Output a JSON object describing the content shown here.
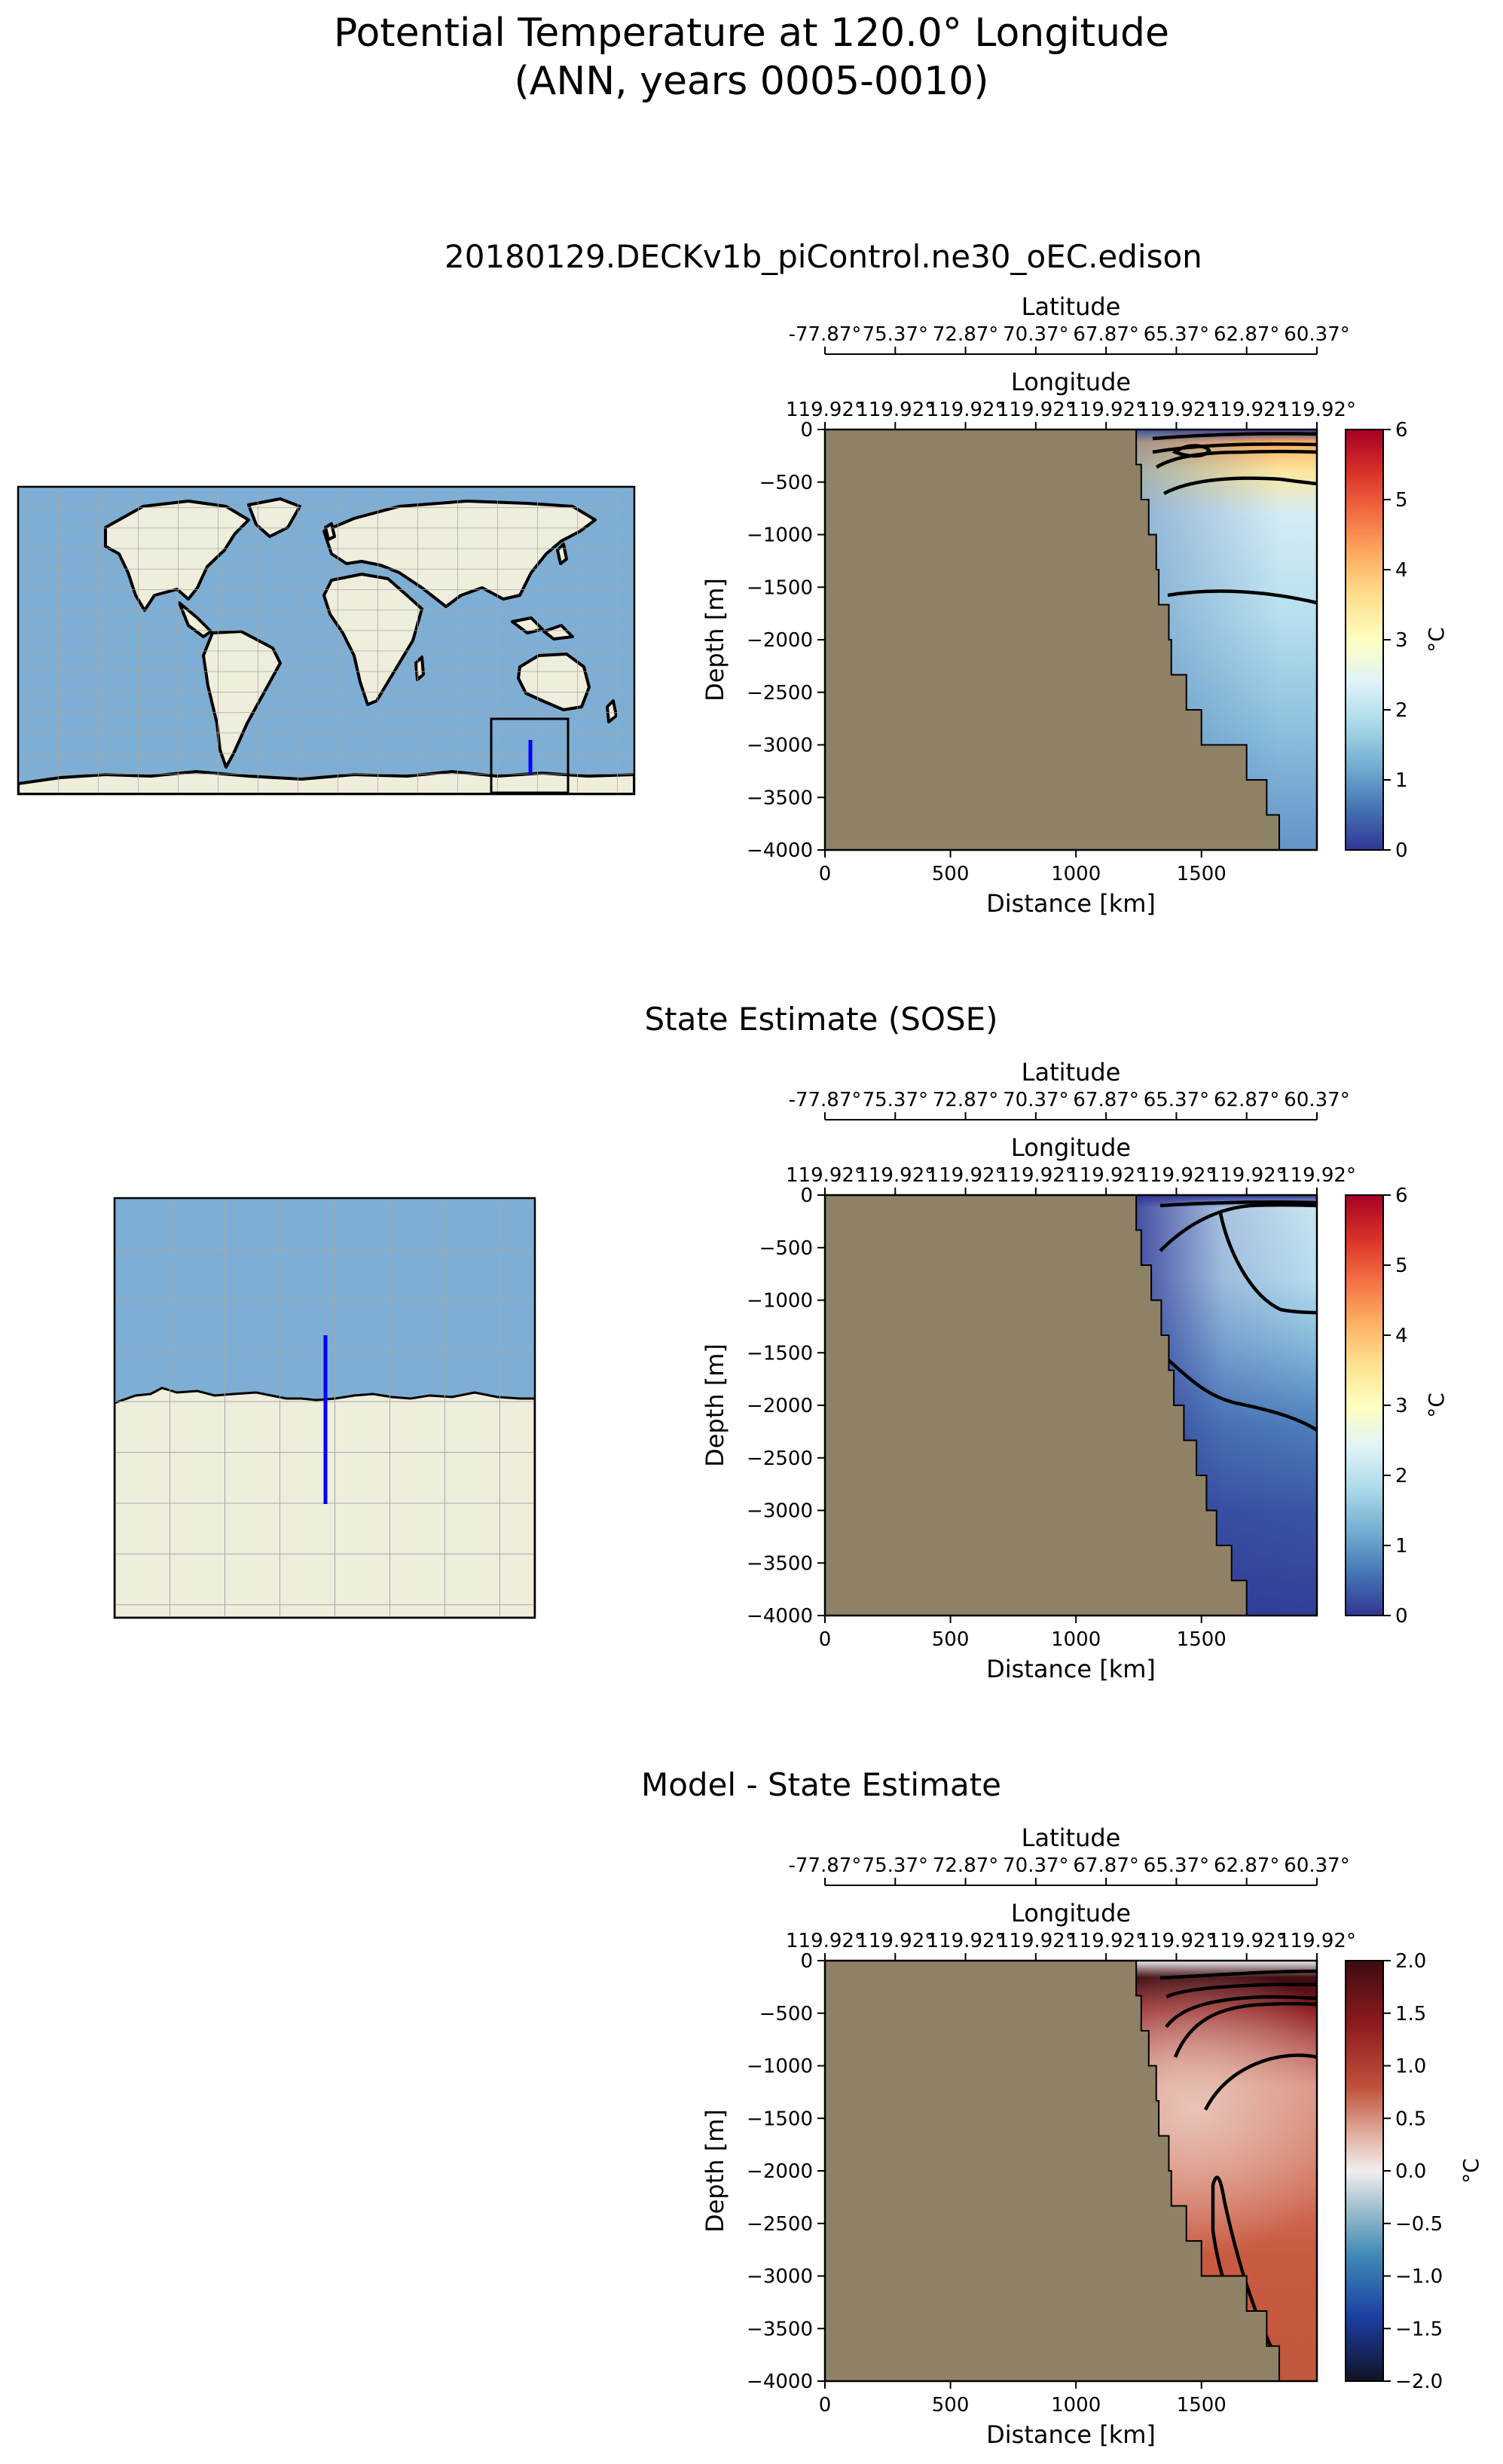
{
  "figure": {
    "title_line1": "Potential Temperature at 120.0° Longitude",
    "title_line2": "(ANN, years 0005-0010)"
  },
  "colors": {
    "land": "#8f8166",
    "ocean_map": "#7eaed3",
    "land_map": "#efeddb",
    "transect": "#0000ff"
  },
  "maps": [
    {
      "name": "global-map",
      "region": "global"
    },
    {
      "name": "zoom-map",
      "region": "antarctic-zoom"
    }
  ],
  "chart_data": [
    {
      "type": "heatmap",
      "title": "20180129.DECKv1b_piControl.ne30_oEC.edison",
      "xlabel": "Distance [km]",
      "ylabel": "Depth [m]",
      "xlim": [
        0,
        1960
      ],
      "ylim": [
        -4000,
        0
      ],
      "xticks": [
        "0",
        "500",
        "1000",
        "1500"
      ],
      "yticks": [
        "0",
        "−500",
        "−1000",
        "−1500",
        "−2000",
        "−2500",
        "−3000",
        "−3500",
        "−4000"
      ],
      "top_axis_1_label": "Latitude",
      "top_axis_1_ticks": [
        "-77.87°",
        "75.37°",
        "72.87°",
        "70.37°",
        "67.87°",
        "65.37°",
        "62.87°",
        "60.37°"
      ],
      "top_axis_2_label": "Longitude",
      "top_axis_2_ticks": [
        "119.92°",
        "119.92°",
        "119.92°",
        "119.92°",
        "119.92°",
        "119.92°",
        "119.92°",
        "119.92°"
      ],
      "colorbar_label": "°C",
      "colorbar_ticks": [
        "6",
        "5",
        "4",
        "3",
        "2",
        "1",
        "0"
      ],
      "colormap": "RdYlBu_r",
      "vmin": 0,
      "vmax": 6,
      "contours": [
        "0.5",
        "1",
        "2",
        "3",
        "4"
      ],
      "bathymetry_km": [
        1240,
        1260,
        1290,
        1320,
        1330,
        1370,
        1380,
        1440,
        1500,
        1680,
        1760,
        1810,
        1960
      ]
    },
    {
      "type": "heatmap",
      "title": "State Estimate (SOSE)",
      "xlabel": "Distance [km]",
      "ylabel": "Depth [m]",
      "xlim": [
        0,
        1960
      ],
      "ylim": [
        -4000,
        0
      ],
      "xticks": [
        "0",
        "500",
        "1000",
        "1500"
      ],
      "yticks": [
        "0",
        "−500",
        "−1000",
        "−1500",
        "−2000",
        "−2500",
        "−3000",
        "−3500",
        "−4000"
      ],
      "top_axis_1_label": "Latitude",
      "top_axis_1_ticks": [
        "-77.87°",
        "75.37°",
        "72.87°",
        "70.37°",
        "67.87°",
        "65.37°",
        "62.87°",
        "60.37°"
      ],
      "top_axis_2_label": "Longitude",
      "top_axis_2_ticks": [
        "119.92°",
        "119.92°",
        "119.92°",
        "119.92°",
        "119.92°",
        "119.92°",
        "119.92°",
        "119.92°"
      ],
      "colorbar_label": "°C",
      "colorbar_ticks": [
        "6",
        "5",
        "4",
        "3",
        "2",
        "1",
        "0"
      ],
      "colormap": "RdYlBu_r",
      "vmin": 0,
      "vmax": 6,
      "contours": [
        "0.5",
        "1",
        "2"
      ],
      "bathymetry_km": [
        1240,
        1260,
        1300,
        1340,
        1370,
        1390,
        1430,
        1480,
        1520,
        1560,
        1620,
        1680,
        1960
      ]
    },
    {
      "type": "heatmap",
      "title": "Model - State Estimate",
      "xlabel": "Distance [km]",
      "ylabel": "Depth [m]",
      "xlim": [
        0,
        1960
      ],
      "ylim": [
        -4000,
        0
      ],
      "xticks": [
        "0",
        "500",
        "1000",
        "1500"
      ],
      "yticks": [
        "0",
        "−500",
        "−1000",
        "−1500",
        "−2000",
        "−2500",
        "−3000",
        "−3500",
        "−4000"
      ],
      "top_axis_1_label": "Latitude",
      "top_axis_1_ticks": [
        "-77.87°",
        "75.37°",
        "72.87°",
        "70.37°",
        "67.87°",
        "65.37°",
        "62.87°",
        "60.37°"
      ],
      "top_axis_2_label": "Longitude",
      "top_axis_2_ticks": [
        "119.92°",
        "119.92°",
        "119.92°",
        "119.92°",
        "119.92°",
        "119.92°",
        "119.92°",
        "119.92°"
      ],
      "colorbar_label": "°C",
      "colorbar_ticks": [
        "2.0",
        "1.5",
        "1.0",
        "0.5",
        "0.0",
        "−0.5",
        "−1.0",
        "−1.5",
        "−2.0"
      ],
      "colormap": "balance",
      "vmin": -2,
      "vmax": 2,
      "contours": [
        "0.5",
        "1.0",
        "1.5"
      ],
      "bathymetry_km": [
        1240,
        1260,
        1290,
        1320,
        1330,
        1370,
        1380,
        1440,
        1500,
        1680,
        1760,
        1810,
        1960
      ]
    }
  ]
}
